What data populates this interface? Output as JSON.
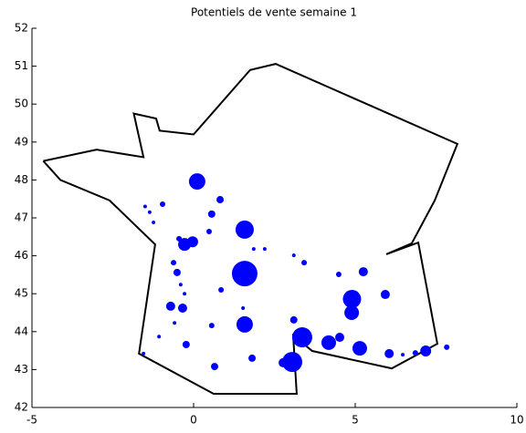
{
  "chart_data": {
    "type": "scatter",
    "title": "Potentiels de vente semaine 1",
    "xlim": [
      -5,
      10
    ],
    "xticks": [
      -5,
      0,
      5,
      10
    ],
    "ylim": [
      42,
      52
    ],
    "yticks": [
      42,
      43,
      44,
      45,
      46,
      47,
      48,
      49,
      50,
      51,
      52
    ],
    "outline": {
      "color": "#000000",
      "x": [
        -4.65,
        -3.0,
        -1.55,
        -1.85,
        -1.16,
        -1.05,
        0,
        1.75,
        2.54,
        8.16,
        7.46,
        6.75,
        5.96,
        6.95,
        7.54,
        6.13,
        3.67,
        3.08,
        3.19,
        0.62,
        -1.69,
        -1.19,
        -2.6,
        -4.12,
        -4.65
      ],
      "y": [
        48.5,
        48.8,
        48.6,
        49.75,
        49.62,
        49.3,
        49.2,
        50.9,
        51.06,
        48.95,
        47.46,
        46.33,
        46.04,
        46.35,
        43.68,
        43.03,
        43.49,
        43.9,
        42.36,
        42.36,
        43.42,
        46.3,
        47.46,
        48.0,
        48.5
      ]
    },
    "series": [
      {
        "color": "#0000ff",
        "x": [
          0.11,
          0.82,
          0.56,
          -0.96,
          -1.5,
          -1.36,
          -1.24,
          -0.45,
          -0.28,
          -0.03,
          0.48,
          1.58,
          1.86,
          2.2,
          3.1,
          3.42,
          -0.62,
          -0.51,
          1.58,
          0.85,
          1.53,
          -0.71,
          -0.34,
          -0.28,
          -0.4,
          1.58,
          0.56,
          -1.07,
          -0.23,
          0.65,
          1.81,
          2.77,
          3.05,
          3.1,
          3.36,
          4.18,
          4.52,
          5.14,
          4.9,
          4.89,
          4.49,
          5.25,
          5.93,
          6.05,
          6.47,
          6.86,
          7.18,
          7.83,
          -1.55,
          -0.59
        ],
        "y": [
          47.96,
          47.48,
          47.1,
          47.36,
          47.3,
          47.15,
          46.88,
          46.45,
          46.3,
          46.37,
          46.64,
          46.69,
          46.18,
          46.18,
          46.01,
          45.82,
          45.82,
          45.56,
          45.53,
          45.1,
          44.62,
          44.67,
          44.62,
          45.0,
          45.24,
          44.19,
          44.16,
          43.87,
          43.66,
          43.08,
          43.3,
          43.18,
          43.2,
          44.31,
          43.85,
          43.71,
          43.85,
          43.56,
          44.86,
          44.5,
          45.51,
          45.58,
          44.98,
          43.42,
          43.39,
          43.44,
          43.49,
          43.59,
          43.42,
          44.23
        ],
        "sizes": [
          9,
          4,
          4,
          3,
          2,
          2,
          2,
          3,
          7,
          6,
          3,
          10,
          2,
          2,
          2,
          3,
          3,
          4,
          14,
          3,
          2,
          5,
          5,
          2,
          2,
          9,
          3,
          2,
          4,
          4,
          4,
          5,
          11,
          4,
          11,
          8,
          5,
          8,
          10,
          8,
          3,
          5,
          5,
          5,
          2,
          3,
          6,
          3,
          2,
          2
        ]
      }
    ]
  }
}
